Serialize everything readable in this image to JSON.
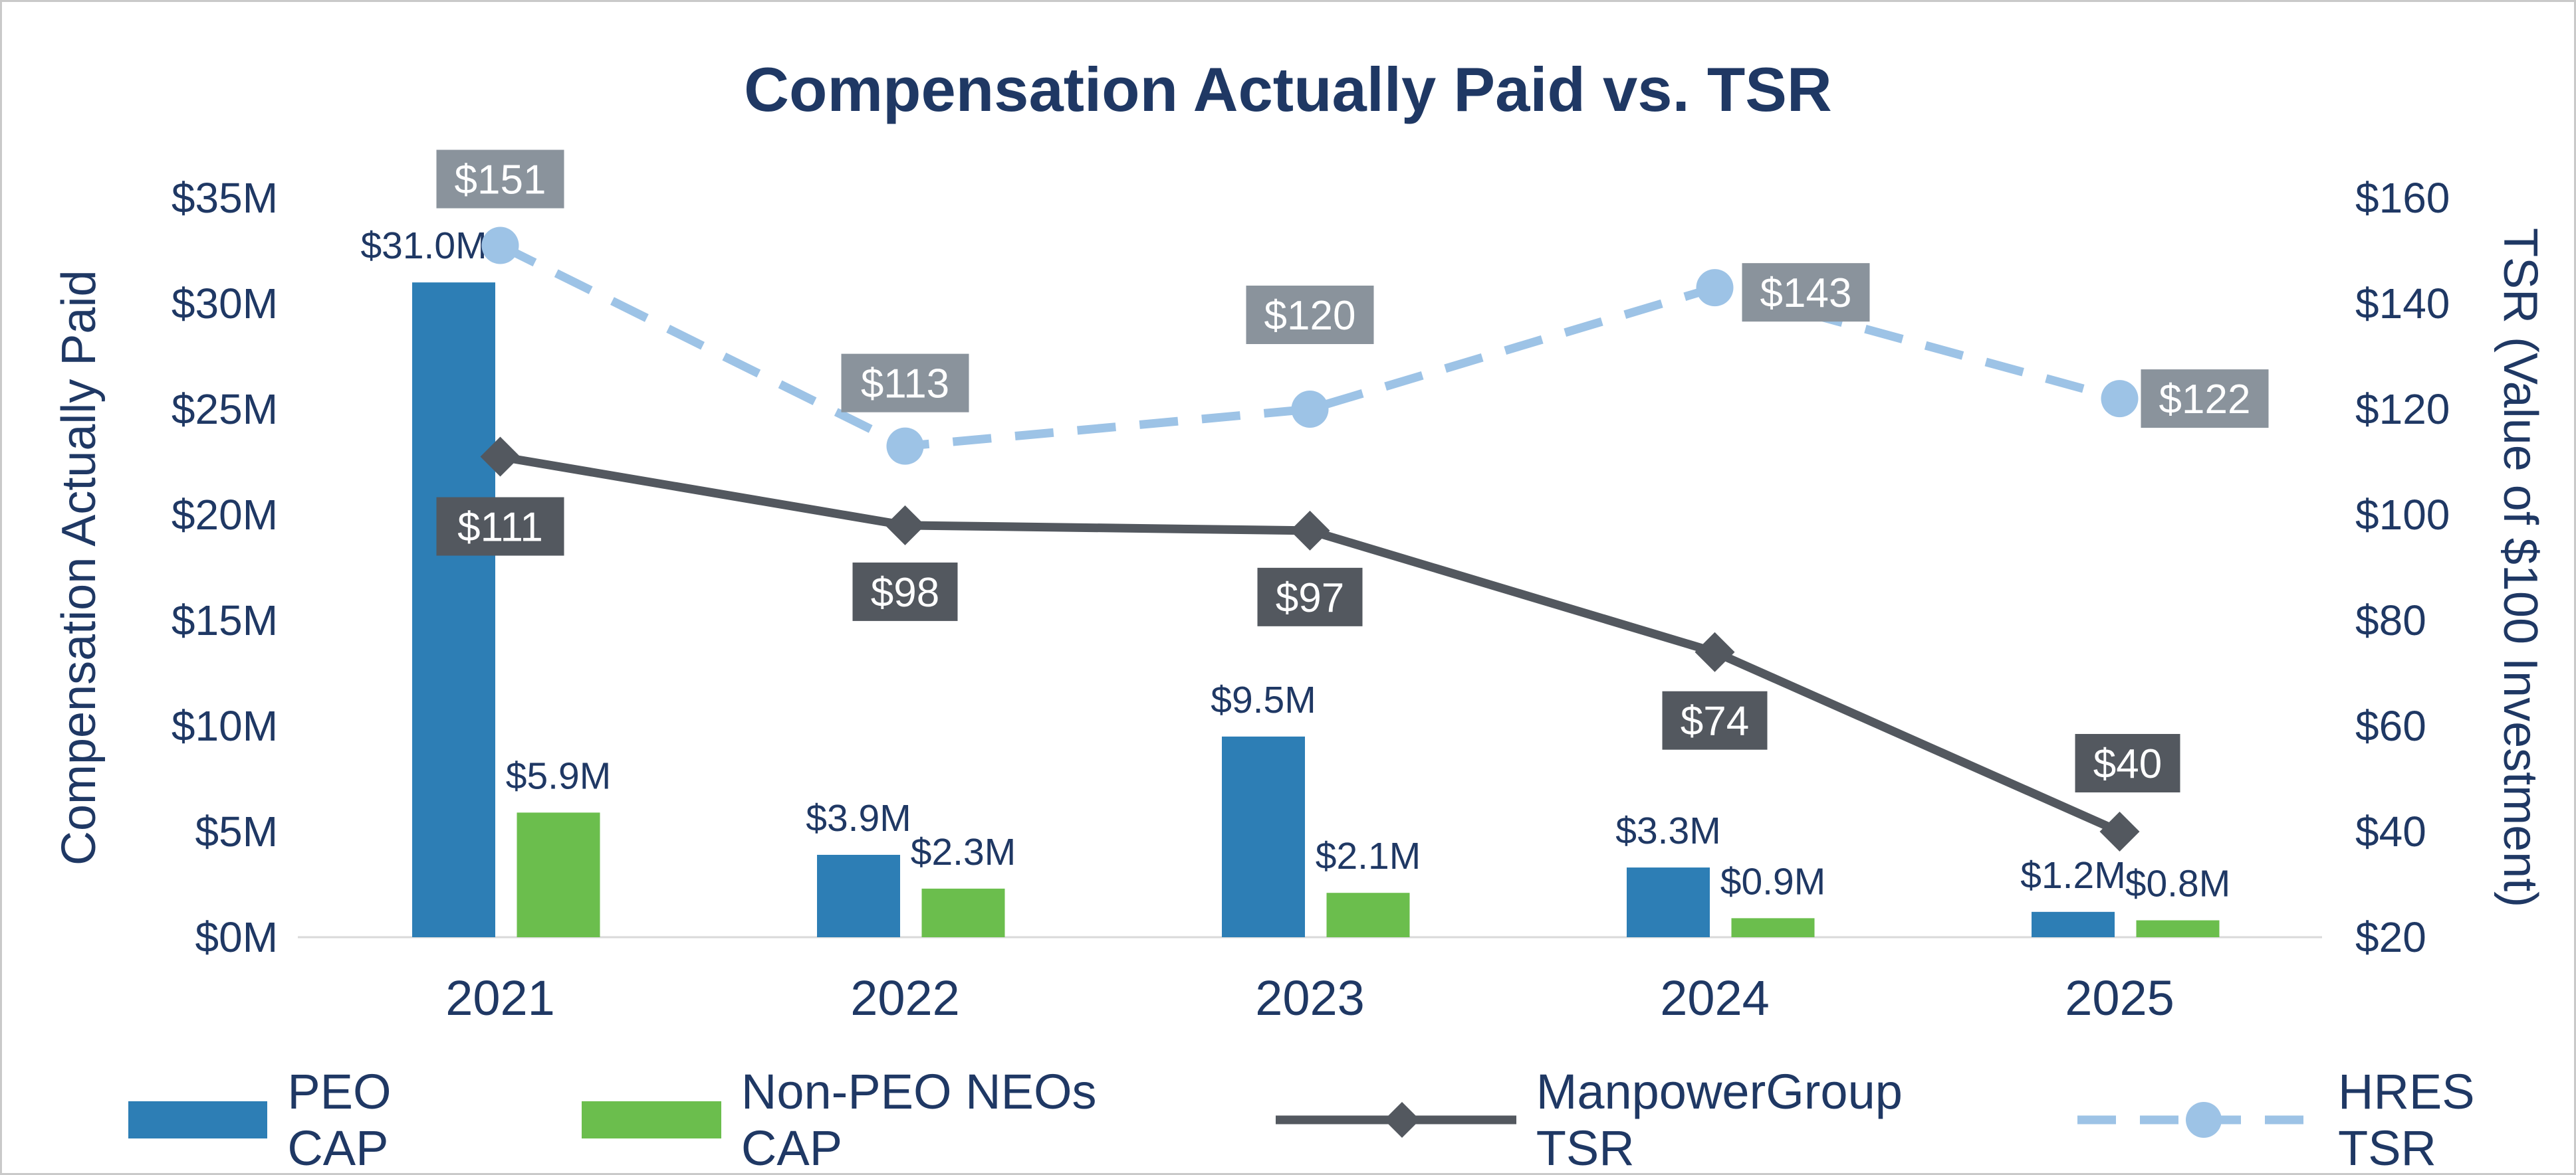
{
  "chart_data": {
    "type": "combo-bar-line",
    "title": "Compensation Actually Paid vs. TSR",
    "categories": [
      "2021",
      "2022",
      "2023",
      "2024",
      "2025"
    ],
    "series": [
      {
        "name": "PEO CAP",
        "type": "bar",
        "axis": "left",
        "color": "#2D7EB5",
        "values": [
          31.0,
          3.9,
          9.5,
          3.3,
          1.2
        ],
        "labels": [
          "$31.0M",
          "$3.9M",
          "$9.5M",
          "$3.3M",
          "$1.2M"
        ]
      },
      {
        "name": "Non-PEO NEOs CAP",
        "type": "bar",
        "axis": "left",
        "color": "#6BBE4D",
        "values": [
          5.9,
          2.3,
          2.1,
          0.9,
          0.8
        ],
        "labels": [
          "$5.9M",
          "$2.3M",
          "$2.1M",
          "$0.9M",
          "$0.8M"
        ]
      },
      {
        "name": "ManpowerGroup TSR",
        "type": "line",
        "axis": "right",
        "color": "#53585F",
        "marker": "diamond",
        "dashed": false,
        "label_bg": "#53585F",
        "values": [
          111,
          98,
          97,
          74,
          40
        ],
        "labels": [
          "$111",
          "$98",
          "$97",
          "$74",
          "$40"
        ]
      },
      {
        "name": "HRES TSR",
        "type": "line",
        "axis": "right",
        "color": "#9DC3E6",
        "marker": "circle",
        "dashed": true,
        "label_bg": "#8A939C",
        "values": [
          151,
          113,
          120,
          143,
          122
        ],
        "labels": [
          "$151",
          "$113",
          "$120",
          "$143",
          "$122"
        ]
      }
    ],
    "left_axis": {
      "title": "Compensation Actually Paid",
      "min": 0,
      "max": 35,
      "ticks": [
        {
          "label": "$0M",
          "value": 0
        },
        {
          "label": "$5M",
          "value": 5
        },
        {
          "label": "$10M",
          "value": 10
        },
        {
          "label": "$15M",
          "value": 15
        },
        {
          "label": "$20M",
          "value": 20
        },
        {
          "label": "$25M",
          "value": 25
        },
        {
          "label": "$30M",
          "value": 30
        },
        {
          "label": "$35M",
          "value": 35
        }
      ]
    },
    "right_axis": {
      "title": "TSR (Value of $100 Investment)",
      "min": 20,
      "max": 160,
      "ticks": [
        {
          "label": "$20",
          "value": 20
        },
        {
          "label": "$40",
          "value": 40
        },
        {
          "label": "$60",
          "value": 60
        },
        {
          "label": "$80",
          "value": 80
        },
        {
          "label": "$100",
          "value": 100
        },
        {
          "label": "$120",
          "value": 120
        },
        {
          "label": "$140",
          "value": 140
        },
        {
          "label": "$160",
          "value": 160
        }
      ]
    },
    "grid": false,
    "legend_position": "bottom"
  },
  "colors": {
    "text": "#1F3864",
    "axis_line": "#D9D9D9",
    "label_text": "#FFFFFF",
    "background": "#FFFFFF",
    "border": "#C9C9C9"
  }
}
